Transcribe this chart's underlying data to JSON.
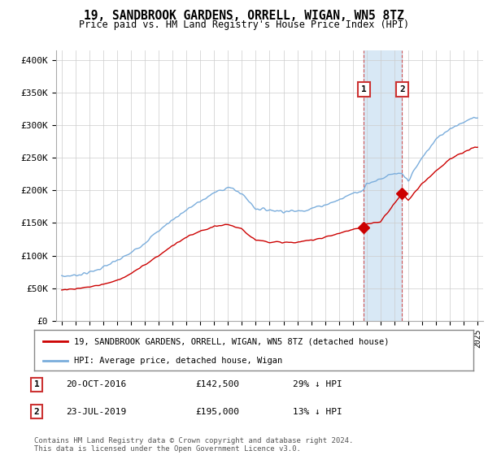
{
  "title": "19, SANDBROOK GARDENS, ORRELL, WIGAN, WN5 8TZ",
  "subtitle": "Price paid vs. HM Land Registry's House Price Index (HPI)",
  "ylabel_ticks": [
    "£0",
    "£50K",
    "£100K",
    "£150K",
    "£200K",
    "£250K",
    "£300K",
    "£350K",
    "£400K"
  ],
  "ytick_values": [
    0,
    50000,
    100000,
    150000,
    200000,
    250000,
    300000,
    350000,
    400000
  ],
  "ylim": [
    0,
    415000
  ],
  "xlim_start": 1994.6,
  "xlim_end": 2025.4,
  "hpi_color": "#7aaddc",
  "price_color": "#cc0000",
  "highlight_bg": "#d8e8f5",
  "purchase1_date": 2016.8,
  "purchase1_price": 142500,
  "purchase2_date": 2019.55,
  "purchase2_price": 195000,
  "legend_line1": "19, SANDBROOK GARDENS, ORRELL, WIGAN, WN5 8TZ (detached house)",
  "legend_line2": "HPI: Average price, detached house, Wigan",
  "annotation1_date": "20-OCT-2016",
  "annotation1_price": "£142,500",
  "annotation1_hpi": "29% ↓ HPI",
  "annotation2_date": "23-JUL-2019",
  "annotation2_price": "£195,000",
  "annotation2_hpi": "13% ↓ HPI",
  "footer": "Contains HM Land Registry data © Crown copyright and database right 2024.\nThis data is licensed under the Open Government Licence v3.0.",
  "xtick_years": [
    1995,
    1996,
    1997,
    1998,
    1999,
    2000,
    2001,
    2002,
    2003,
    2004,
    2005,
    2006,
    2007,
    2008,
    2009,
    2010,
    2011,
    2012,
    2013,
    2014,
    2015,
    2016,
    2017,
    2018,
    2019,
    2020,
    2021,
    2022,
    2023,
    2024,
    2025
  ]
}
